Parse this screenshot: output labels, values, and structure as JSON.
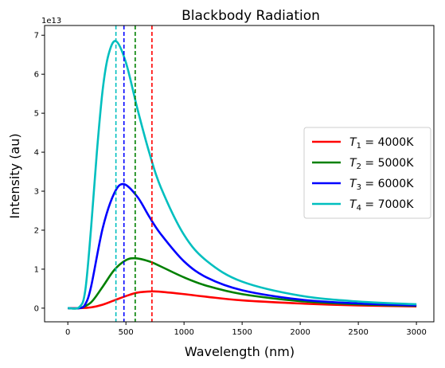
{
  "chart_data": {
    "type": "line",
    "title": "Blackbody Radiation",
    "xlabel": "Wavelength (nm)",
    "ylabel": "Intensity (au)",
    "y_offset_label": "1e13",
    "xlim": [
      -200,
      3150
    ],
    "ylim": [
      -0.35,
      7.25
    ],
    "y_scale_note": "values in units of 1e13",
    "xticks": [
      0,
      500,
      1000,
      1500,
      2000,
      2500,
      3000
    ],
    "yticks": [
      0,
      1,
      2,
      3,
      4,
      5,
      6,
      7
    ],
    "grid": false,
    "legend_position": "center-right",
    "series": [
      {
        "name_main": "T",
        "name_sub": "1",
        "name_rest": " = 4000K",
        "color": "#ff0000",
        "temperature_K": 4000,
        "peak_wavelength_nm": 724,
        "x": [
          0,
          100,
          200,
          300,
          400,
          500,
          600,
          724,
          800,
          1000,
          1200,
          1500,
          2000,
          2500,
          3000
        ],
        "y": [
          0,
          0.0,
          0.02,
          0.09,
          0.2,
          0.31,
          0.4,
          0.43,
          0.42,
          0.36,
          0.29,
          0.2,
          0.12,
          0.07,
          0.045
        ]
      },
      {
        "name_main": "T",
        "name_sub": "2",
        "name_rest": " = 5000K",
        "color": "#008000",
        "temperature_K": 5000,
        "peak_wavelength_nm": 580,
        "x": [
          0,
          100,
          200,
          300,
          400,
          500,
          580,
          700,
          800,
          1000,
          1200,
          1500,
          2000,
          2500,
          3000
        ],
        "y": [
          0,
          0.0,
          0.15,
          0.55,
          0.98,
          1.23,
          1.28,
          1.2,
          1.07,
          0.79,
          0.57,
          0.36,
          0.18,
          0.1,
          0.06
        ]
      },
      {
        "name_main": "T",
        "name_sub": "3",
        "name_rest": " = 6000K",
        "color": "#0000ff",
        "temperature_K": 6000,
        "peak_wavelength_nm": 483,
        "x": [
          0,
          100,
          150,
          200,
          300,
          400,
          483,
          600,
          700,
          800,
          1000,
          1200,
          1500,
          2000,
          2500,
          3000
        ],
        "y": [
          0,
          0.0,
          0.1,
          0.55,
          2.05,
          2.95,
          3.18,
          2.85,
          2.35,
          1.9,
          1.2,
          0.78,
          0.46,
          0.22,
          0.12,
          0.07
        ]
      },
      {
        "name_main": "T",
        "name_sub": "4",
        "name_rest": " = 7000K",
        "color": "#00bfbf",
        "temperature_K": 7000,
        "peak_wavelength_nm": 414,
        "x": [
          0,
          100,
          150,
          200,
          250,
          300,
          350,
          414,
          500,
          600,
          700,
          800,
          1000,
          1200,
          1500,
          2000,
          2500,
          3000
        ],
        "y": [
          0,
          0.03,
          0.45,
          2.05,
          4.0,
          5.6,
          6.5,
          6.85,
          6.3,
          5.1,
          4.0,
          3.1,
          1.88,
          1.2,
          0.68,
          0.32,
          0.17,
          0.1
        ]
      }
    ]
  }
}
